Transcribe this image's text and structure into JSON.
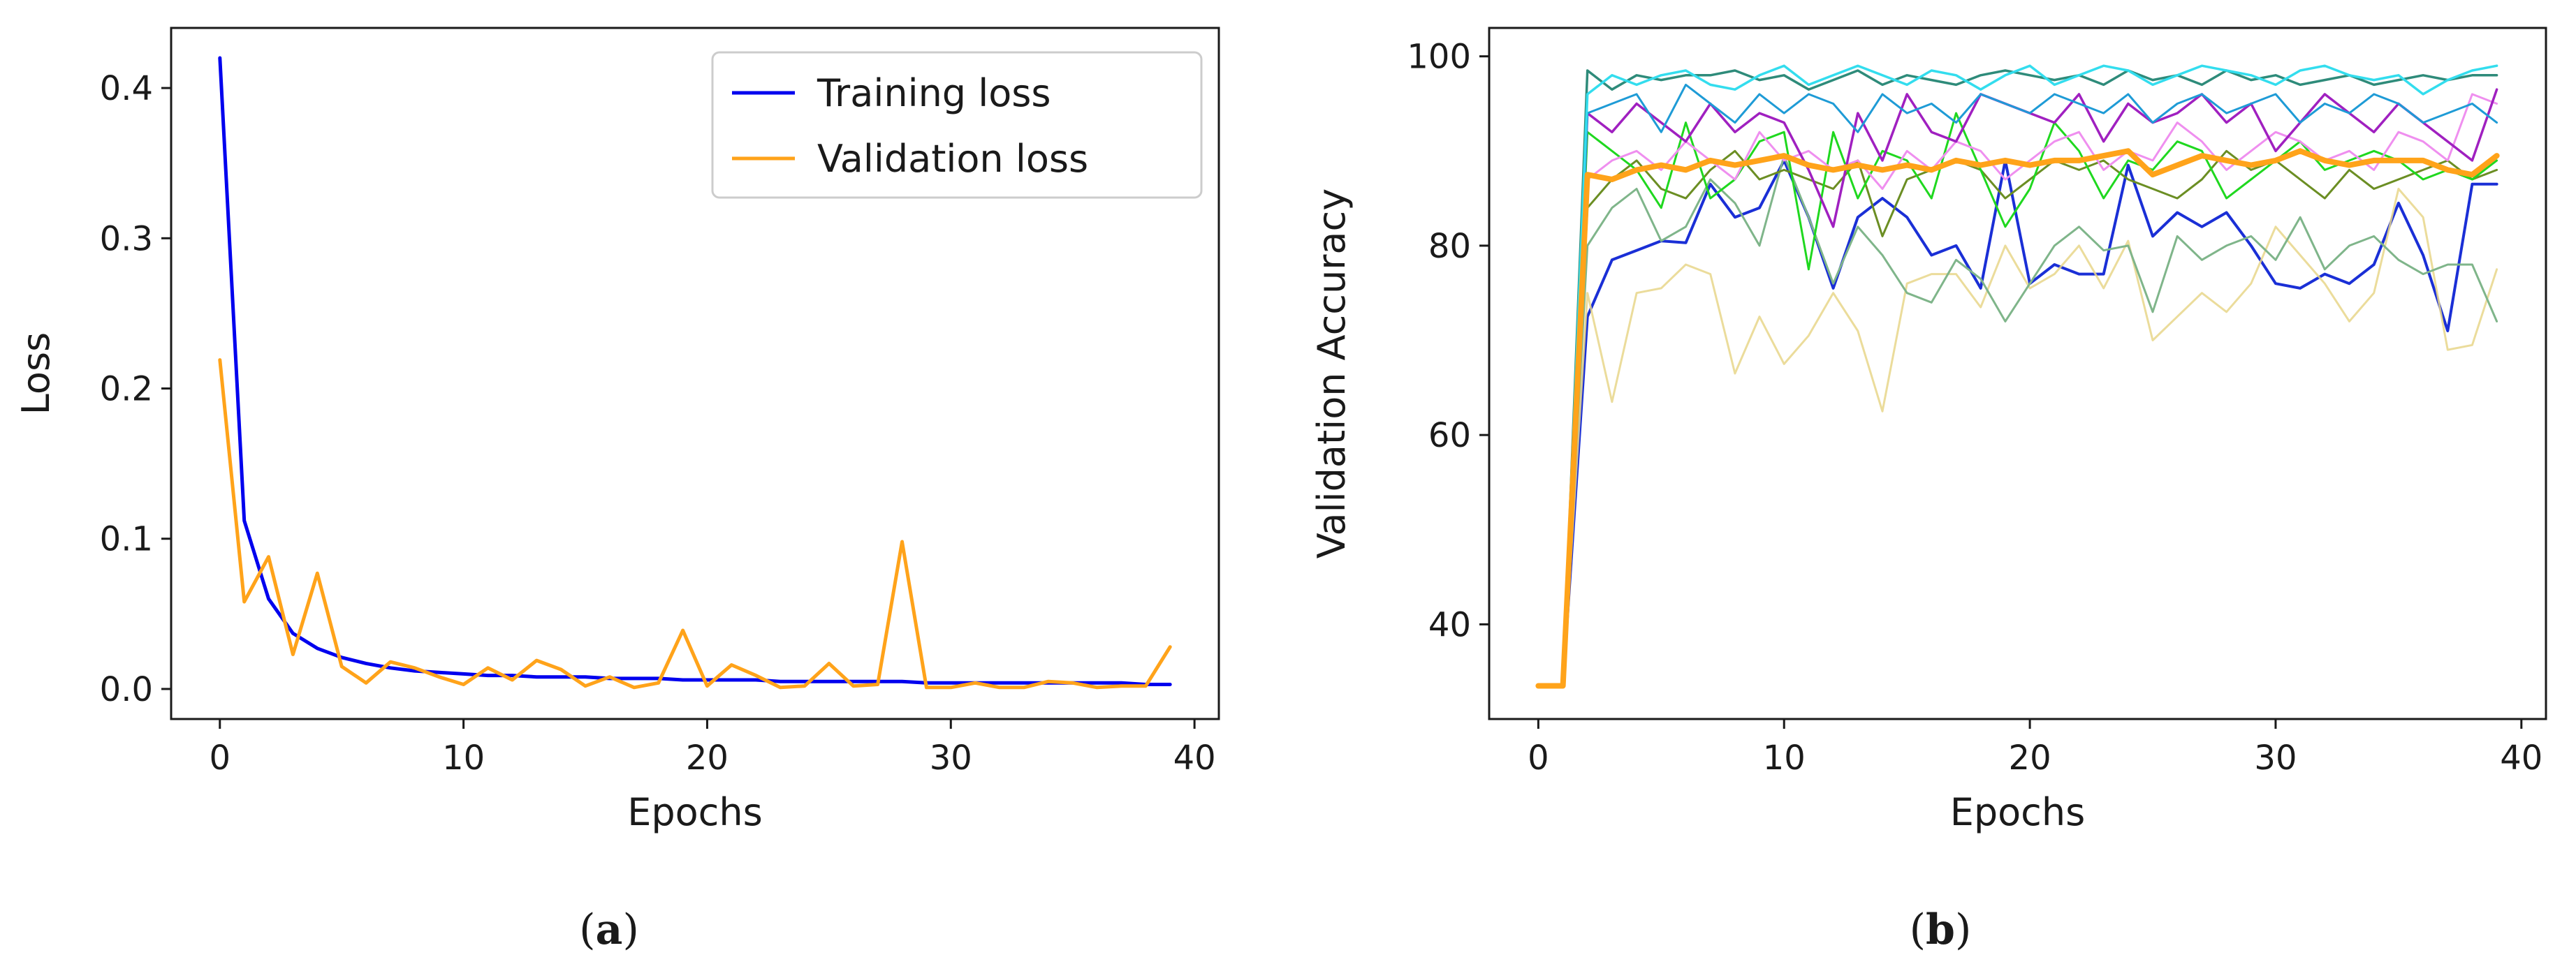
{
  "panels": [
    {
      "label_open": "(",
      "label_letter": "a",
      "label_close": ")"
    },
    {
      "label_open": "(",
      "label_letter": "b",
      "label_close": ")"
    }
  ],
  "chart_data": [
    {
      "type": "line",
      "title": "",
      "xlabel": "Epochs",
      "ylabel": "Loss",
      "xlim": [
        -2,
        41
      ],
      "ylim": [
        -0.02,
        0.44
      ],
      "xticks": [
        0,
        10,
        20,
        30,
        40
      ],
      "yticks": [
        0.0,
        0.1,
        0.2,
        0.3,
        0.4
      ],
      "ytick_labels": [
        "0.0",
        "0.1",
        "0.2",
        "0.3",
        "0.4"
      ],
      "grid": false,
      "legend": "top-right",
      "series": [
        {
          "name": "Training loss",
          "color": "#0000ee",
          "x": [
            0,
            1,
            2,
            3,
            4,
            5,
            6,
            7,
            8,
            9,
            10,
            11,
            12,
            13,
            14,
            15,
            16,
            17,
            18,
            19,
            20,
            21,
            22,
            23,
            24,
            25,
            26,
            27,
            28,
            29,
            30,
            31,
            32,
            33,
            34,
            35,
            36,
            37,
            38,
            39
          ],
          "values": [
            0.42,
            0.112,
            0.06,
            0.037,
            0.027,
            0.021,
            0.017,
            0.014,
            0.012,
            0.011,
            0.01,
            0.009,
            0.009,
            0.008,
            0.008,
            0.008,
            0.007,
            0.007,
            0.007,
            0.006,
            0.006,
            0.006,
            0.006,
            0.005,
            0.005,
            0.005,
            0.005,
            0.005,
            0.005,
            0.004,
            0.004,
            0.004,
            0.004,
            0.004,
            0.004,
            0.004,
            0.004,
            0.004,
            0.003,
            0.003
          ]
        },
        {
          "name": "Validation loss",
          "color": "#ffa31a",
          "x": [
            0,
            1,
            2,
            3,
            4,
            5,
            6,
            7,
            8,
            9,
            10,
            11,
            12,
            13,
            14,
            15,
            16,
            17,
            18,
            19,
            20,
            21,
            22,
            23,
            24,
            25,
            26,
            27,
            28,
            29,
            30,
            31,
            32,
            33,
            34,
            35,
            36,
            37,
            38,
            39
          ],
          "values": [
            0.219,
            0.058,
            0.088,
            0.023,
            0.077,
            0.015,
            0.004,
            0.018,
            0.014,
            0.008,
            0.003,
            0.014,
            0.006,
            0.019,
            0.013,
            0.002,
            0.008,
            0.001,
            0.004,
            0.039,
            0.002,
            0.016,
            0.009,
            0.001,
            0.002,
            0.017,
            0.002,
            0.003,
            0.098,
            0.001,
            0.001,
            0.004,
            0.001,
            0.001,
            0.005,
            0.004,
            0.001,
            0.002,
            0.002,
            0.028
          ]
        }
      ]
    },
    {
      "type": "line",
      "title": "",
      "xlabel": "Epochs",
      "ylabel": "Validation Accuracy",
      "xlim": [
        -2,
        41
      ],
      "ylim": [
        30,
        103
      ],
      "xticks": [
        0,
        10,
        20,
        30,
        40
      ],
      "yticks": [
        40,
        60,
        80,
        100
      ],
      "grid": false,
      "legend": "none",
      "x": [
        0,
        1,
        2,
        3,
        4,
        5,
        6,
        7,
        8,
        9,
        10,
        11,
        12,
        13,
        14,
        15,
        16,
        17,
        18,
        19,
        20,
        21,
        22,
        23,
        24,
        25,
        26,
        27,
        28,
        29,
        30,
        31,
        32,
        33,
        34,
        35,
        36,
        37,
        38,
        39
      ],
      "series": [
        {
          "color": "#1a2fd6",
          "width": 4,
          "values": [
            33.5,
            33.5,
            72.5,
            78.5,
            79.5,
            80.5,
            80.3,
            86.5,
            83,
            84,
            89,
            83,
            75.5,
            83,
            85,
            83,
            79,
            80,
            75.5,
            89,
            76,
            78,
            77,
            77,
            88.5,
            81,
            83.5,
            82,
            83.5,
            80,
            76,
            75.5,
            77,
            76,
            78,
            84.5,
            79,
            71,
            86.5,
            86.5
          ]
        },
        {
          "color": "#e8d68a",
          "width": 3,
          "values": [
            33.5,
            33.5,
            75,
            63.5,
            75,
            75.5,
            78,
            77,
            66.5,
            72.5,
            67.5,
            70.5,
            75,
            71,
            62.5,
            76,
            77,
            77,
            73.5,
            80,
            75.5,
            77,
            80,
            75.5,
            80.5,
            70,
            72.5,
            75,
            73,
            76,
            82,
            79,
            76,
            72,
            75,
            86,
            83,
            69,
            69.5,
            77.5
          ]
        },
        {
          "color": "#7fb58a",
          "width": 3,
          "values": [
            33.5,
            33.5,
            80,
            84,
            86,
            80.5,
            82,
            87,
            84.5,
            80,
            89.5,
            83,
            76,
            82,
            79,
            75,
            74,
            78.5,
            76.5,
            72,
            76,
            80,
            82,
            79.5,
            80,
            73,
            81,
            78.5,
            80,
            81,
            78.5,
            83,
            77.5,
            80,
            81,
            78.5,
            77,
            78,
            78,
            72
          ]
        },
        {
          "color": "#6b8e23",
          "width": 3,
          "values": [
            33.5,
            33.5,
            84,
            87,
            89,
            86,
            85,
            88,
            90,
            87,
            88,
            87,
            86,
            89,
            81,
            87,
            88,
            89,
            88,
            85,
            87,
            89,
            88,
            89,
            87,
            86,
            85,
            87,
            90,
            88,
            89,
            87,
            85,
            88,
            86,
            87,
            88,
            89,
            87,
            88
          ]
        },
        {
          "color": "#1fd81f",
          "width": 3,
          "values": [
            33.5,
            33.5,
            92,
            90,
            88,
            84,
            93,
            85,
            87,
            91,
            92,
            77.5,
            92,
            85,
            90,
            89,
            85,
            94,
            88,
            82,
            86,
            93,
            90,
            85,
            89,
            88,
            91,
            90,
            85,
            87,
            89,
            91,
            88,
            89,
            90,
            89,
            87,
            88,
            87,
            89
          ]
        },
        {
          "color": "#ef8fef",
          "width": 3,
          "values": [
            33.5,
            33.5,
            87,
            89,
            90,
            88,
            91,
            89,
            87,
            92,
            89,
            90,
            88,
            89,
            86,
            90,
            88,
            91,
            90,
            87,
            89,
            91,
            92,
            88,
            90,
            89,
            93,
            91,
            88,
            90,
            92,
            91,
            89,
            90,
            88,
            92,
            91,
            89,
            96,
            95
          ]
        },
        {
          "color": "#a020c0",
          "width": 3.5,
          "values": [
            33.5,
            33.5,
            94,
            92,
            95,
            93,
            91,
            95,
            92,
            94,
            93,
            88,
            82,
            94,
            89,
            96,
            92,
            91,
            96,
            95,
            94,
            93,
            96,
            91,
            95,
            93,
            94,
            96,
            93,
            95,
            90,
            93,
            96,
            94,
            92,
            95,
            93,
            91,
            89,
            96.5
          ]
        },
        {
          "color": "#1e9bd6",
          "width": 3,
          "values": [
            33.5,
            33.5,
            94,
            95,
            96,
            92,
            97,
            95,
            93,
            96,
            94,
            96,
            95,
            92,
            96,
            94,
            95,
            93,
            96,
            95,
            94,
            96,
            95,
            94,
            96,
            93,
            95,
            96,
            94,
            95,
            96,
            93,
            95,
            94,
            96,
            95,
            93,
            94,
            95,
            93
          ]
        },
        {
          "color": "#2e8b7a",
          "width": 3.5,
          "values": [
            33.5,
            33.5,
            98.5,
            96.5,
            98,
            97.5,
            98,
            98,
            98.5,
            97.5,
            98,
            96.5,
            97.5,
            98.5,
            97,
            98,
            97.5,
            97,
            98,
            98.5,
            98,
            97.5,
            98,
            97,
            98.5,
            97.5,
            98,
            97,
            98.5,
            97.5,
            98,
            97,
            97.5,
            98,
            97,
            97.5,
            98,
            97.5,
            98,
            98
          ]
        },
        {
          "color": "#33ddee",
          "width": 3.5,
          "values": [
            33.5,
            33.5,
            96,
            98,
            97,
            98,
            98.5,
            97,
            96.5,
            98,
            99,
            97,
            98,
            99,
            98,
            97,
            98.5,
            98,
            96.5,
            98,
            99,
            97,
            98,
            99,
            98.5,
            97,
            98,
            99,
            98.5,
            98,
            97,
            98.5,
            99,
            98,
            97.5,
            98,
            96,
            97.5,
            98.5,
            99
          ]
        },
        {
          "color": "#ffa31a",
          "width": 8,
          "values": [
            33.5,
            33.5,
            87.5,
            87,
            88,
            88.5,
            88,
            89,
            88.5,
            89,
            89.5,
            88.5,
            88,
            88.5,
            88,
            88.5,
            88,
            89,
            88.5,
            89,
            88.5,
            89,
            89,
            89.5,
            90,
            87.5,
            88.5,
            89.5,
            89,
            88.5,
            89,
            90,
            89,
            88.5,
            89,
            89,
            89,
            88,
            87.5,
            89.5
          ]
        }
      ]
    }
  ]
}
